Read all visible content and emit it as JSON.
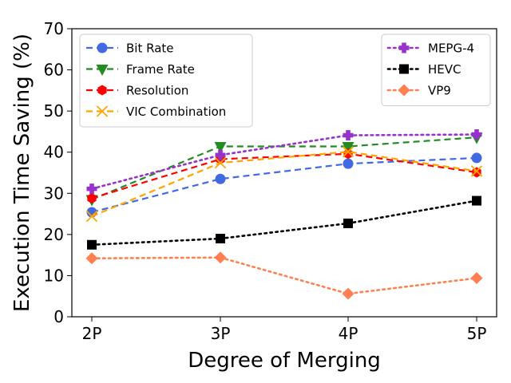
{
  "chart_data": {
    "type": "line",
    "xlabel": "Degree of Merging",
    "ylabel": "Execution Time Saving (%)",
    "categories": [
      "2P",
      "3P",
      "4P",
      "5P"
    ],
    "ylim": [
      0,
      70
    ],
    "yticks": [
      0,
      10,
      20,
      30,
      40,
      50,
      60,
      70
    ],
    "grid": false,
    "legends": [
      {
        "placement": "top-left",
        "entries": [
          "Bit Rate",
          "Frame Rate",
          "Resolution",
          "VIC Combination"
        ]
      },
      {
        "placement": "top-right",
        "entries": [
          "MEPG-4",
          "HEVC",
          "VP9"
        ]
      }
    ],
    "series": [
      {
        "name": "Bit Rate",
        "values": [
          25.4,
          33.5,
          37.2,
          38.6
        ],
        "color": "#4169e1",
        "marker": "circle",
        "dash": "dashed"
      },
      {
        "name": "Frame Rate",
        "values": [
          28.5,
          41.4,
          41.4,
          43.6
        ],
        "color": "#228b22",
        "marker": "triangle-down",
        "dash": "dashed"
      },
      {
        "name": "Resolution",
        "values": [
          28.8,
          38.3,
          39.6,
          35.1
        ],
        "color": "#ff0000",
        "marker": "hexagon",
        "dash": "dashed"
      },
      {
        "name": "VIC Combination",
        "values": [
          24.4,
          37.4,
          40.1,
          35.4
        ],
        "color": "#ffa500",
        "marker": "x",
        "dash": "dashed"
      },
      {
        "name": "MEPG-4",
        "values": [
          31.1,
          39.3,
          44.1,
          44.3
        ],
        "color": "#9932cc",
        "marker": "plus",
        "dash": "dotted"
      },
      {
        "name": "HEVC",
        "values": [
          17.5,
          19.0,
          22.7,
          28.2
        ],
        "color": "#000000",
        "marker": "square",
        "dash": "dotted"
      },
      {
        "name": "VP9",
        "values": [
          14.2,
          14.4,
          5.6,
          9.4
        ],
        "color": "#ff7f50",
        "marker": "diamond",
        "dash": "dotted"
      }
    ]
  }
}
